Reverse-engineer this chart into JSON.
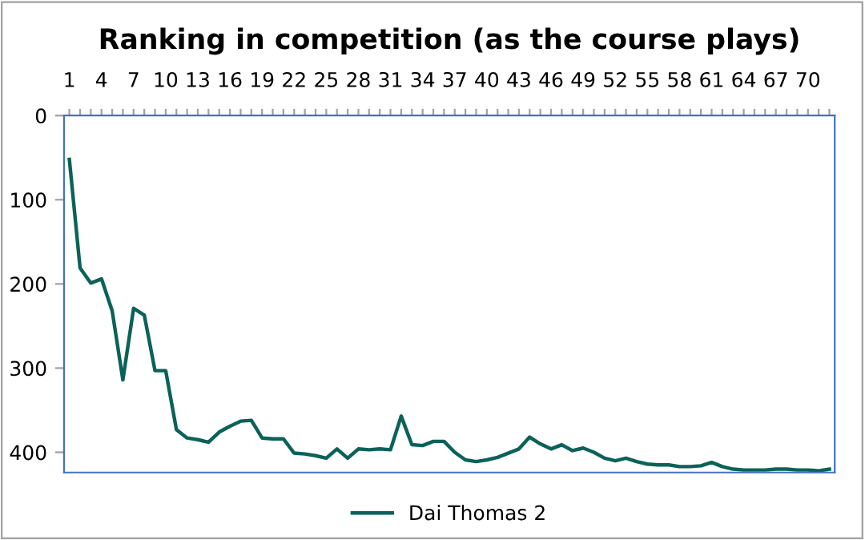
{
  "chart_data": {
    "type": "line",
    "title": "Ranking in competition (as the course plays)",
    "categories": [
      "1",
      null,
      null,
      "4",
      null,
      null,
      "7",
      null,
      null,
      "10",
      null,
      null,
      "13",
      null,
      null,
      "16",
      null,
      null,
      "19",
      null,
      null,
      "22",
      null,
      null,
      "25",
      null,
      null,
      "28",
      null,
      null,
      "31",
      null,
      null,
      "34",
      null,
      null,
      "37",
      null,
      null,
      "40",
      null,
      null,
      "43",
      null,
      null,
      "46",
      null,
      null,
      "49",
      null,
      null,
      "52",
      null,
      null,
      "55",
      null,
      null,
      "58",
      null,
      null,
      "61",
      null,
      null,
      "64",
      null,
      null,
      "67",
      null,
      null,
      "70",
      null,
      null
    ],
    "series": [
      {
        "name": "Dai Thomas 2",
        "color": "#0b6258",
        "values": [
          52,
          181,
          199,
          194,
          232,
          314,
          229,
          237,
          303,
          303,
          373,
          383,
          385,
          388,
          376,
          369,
          363,
          362,
          383,
          384,
          384,
          401,
          402,
          404,
          407,
          396,
          407,
          396,
          397,
          396,
          397,
          357,
          391,
          392,
          387,
          387,
          400,
          409,
          411,
          409,
          406,
          401,
          396,
          382,
          390,
          396,
          391,
          398,
          395,
          400,
          407,
          410,
          407,
          411,
          414,
          415,
          415,
          417,
          417,
          416,
          412,
          417,
          420,
          421,
          421,
          421,
          420,
          420,
          421,
          421,
          422,
          420
        ]
      }
    ],
    "ylim": [
      424,
      0
    ],
    "yticks": [
      0,
      100,
      200,
      300,
      400
    ],
    "grid": false,
    "legend": "bottom",
    "marker": "none",
    "line_style": "solid"
  }
}
